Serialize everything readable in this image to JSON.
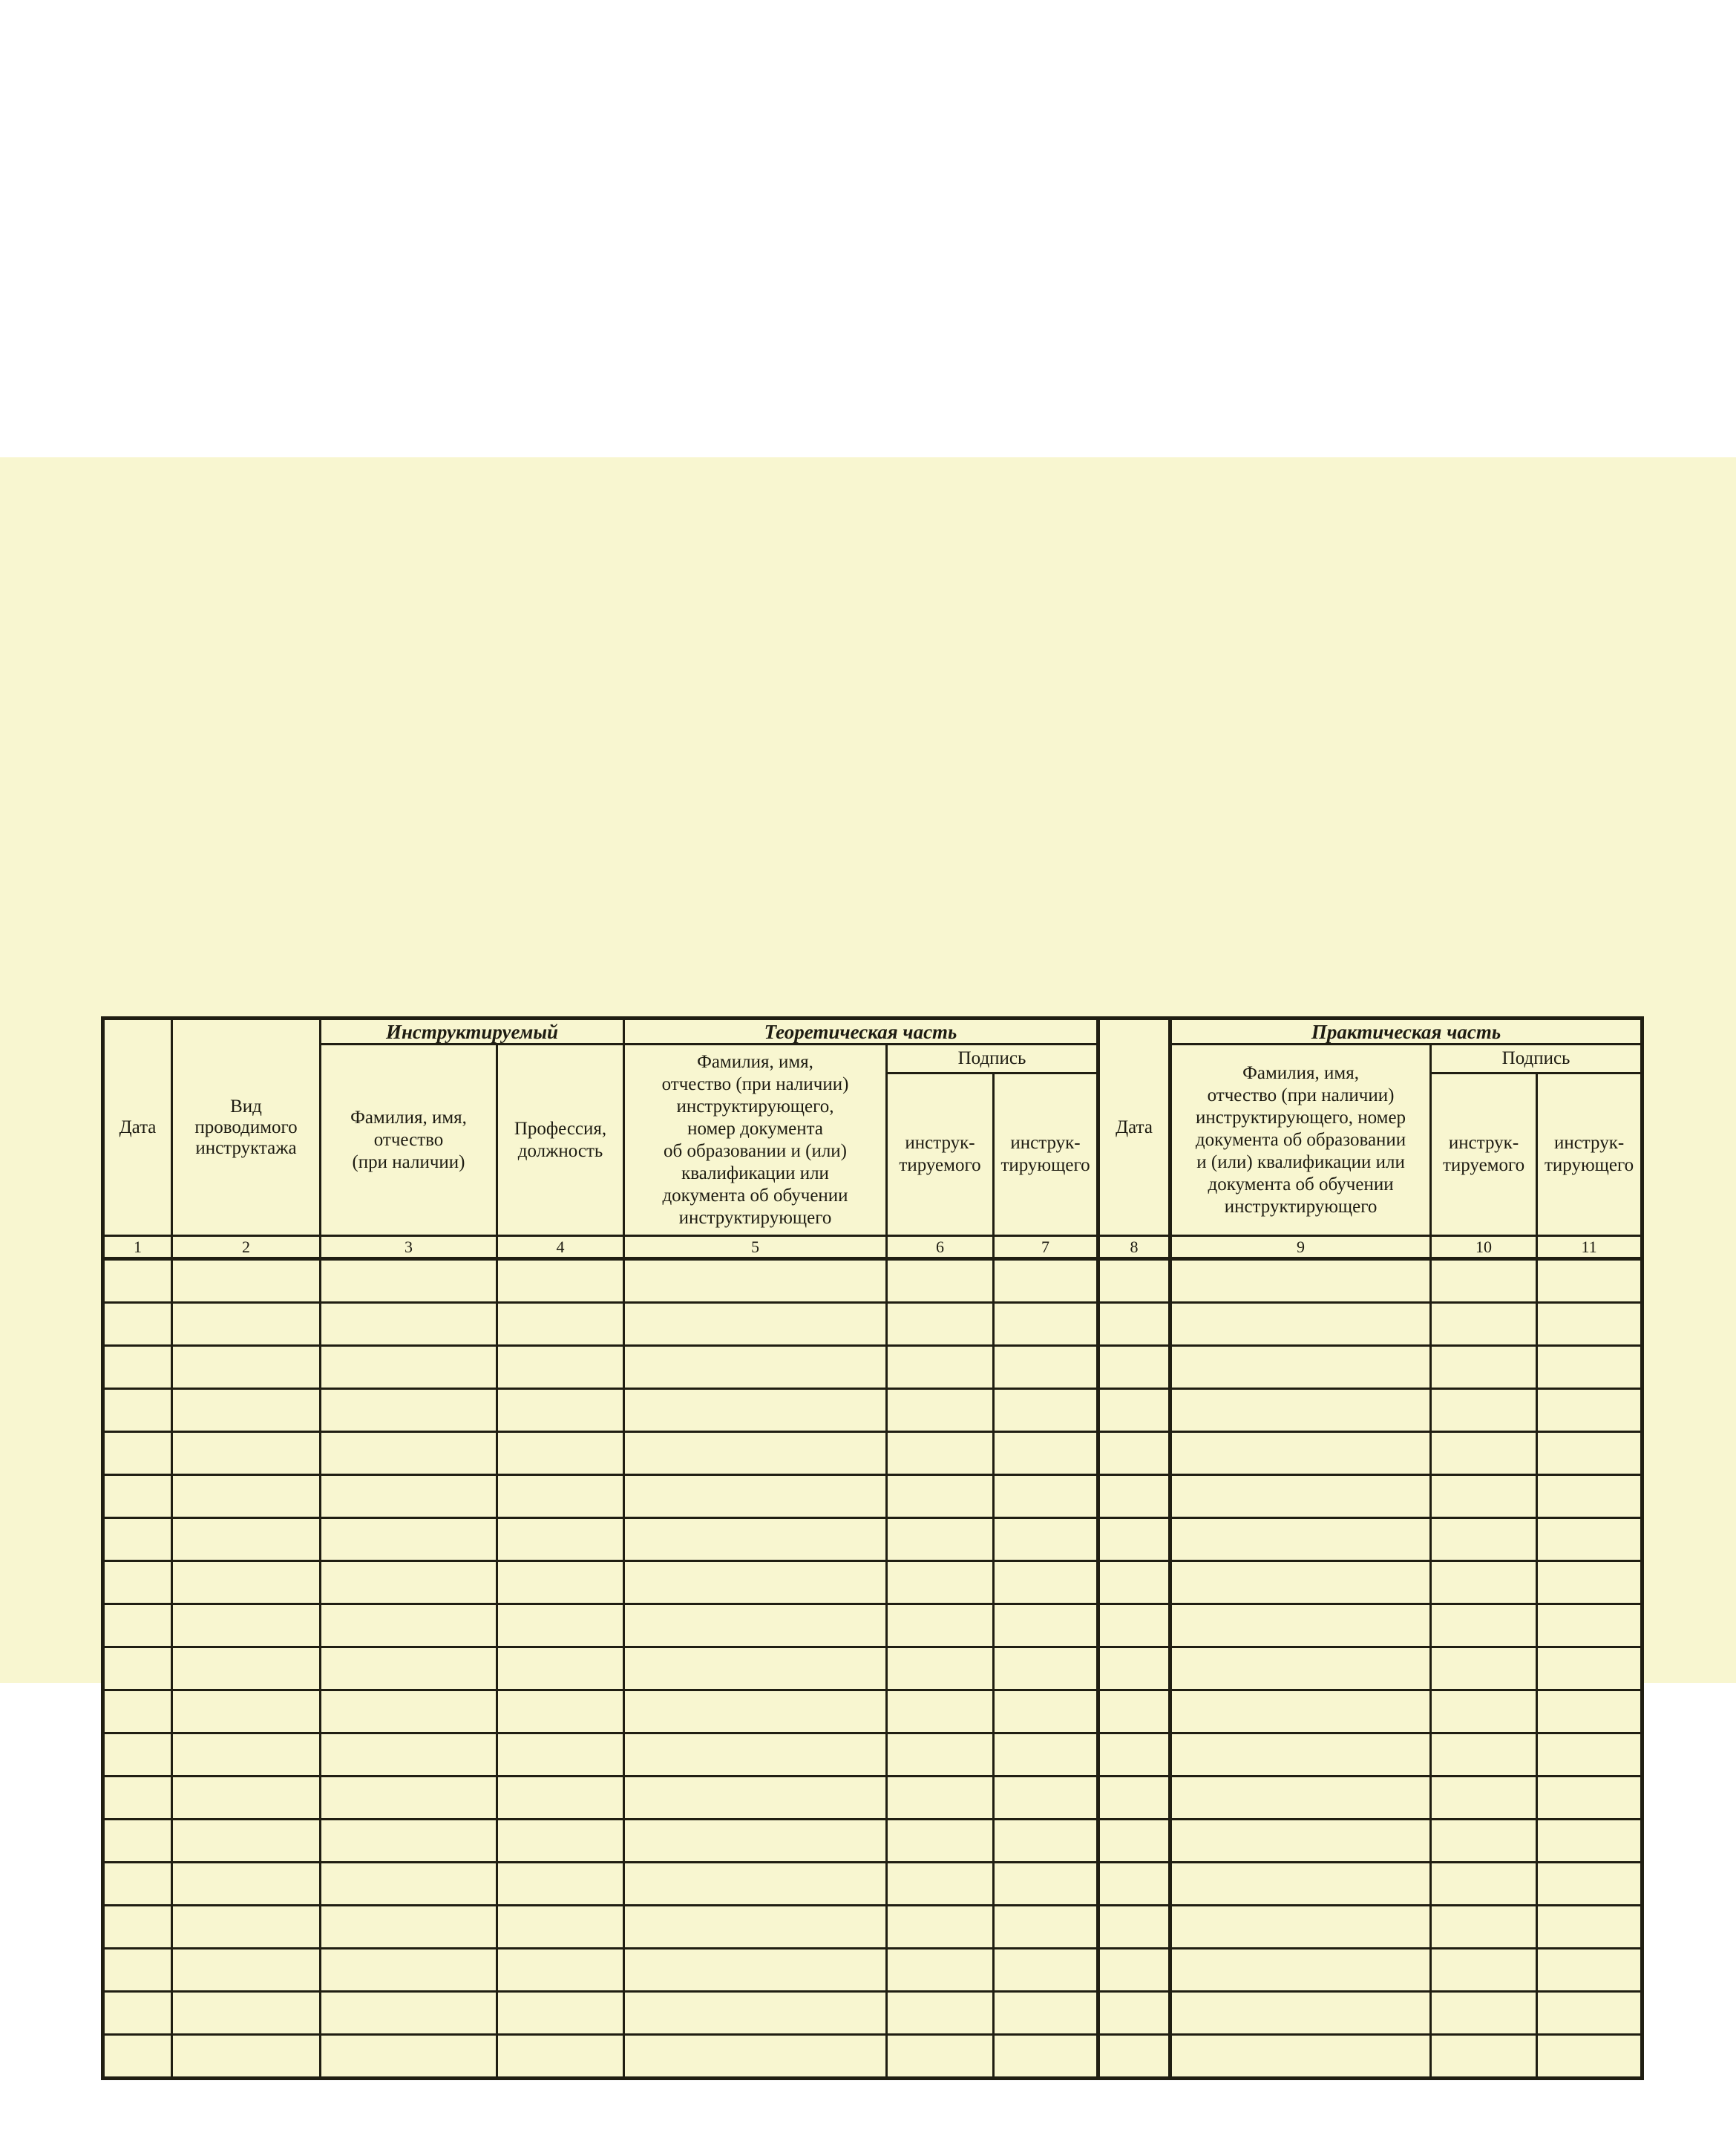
{
  "page": {
    "sheet_color": "#f8f6d0",
    "border_color": "#201e12",
    "text_color": "#1e1c12"
  },
  "table": {
    "group_headers": {
      "instructed": "Инструктируемый",
      "theory": "Теоретическая часть",
      "practice": "Практическая часть"
    },
    "headers": {
      "date": "Дата",
      "instruction_type": "Вид\nпроводимого\nинструктажа",
      "person_name": "Фамилия, имя,\nотчество\n(при наличии)",
      "profession": "Профессия,\nдолжность",
      "instructor_theory": "Фамилия, имя,\nотчество (при наличии)\nинструктирующего,\nномер документа\nоб образовании и (или)\nквалификации или\nдокумента об обучении\nинструктирующего",
      "signature": "Подпись",
      "signature2": "Подпись",
      "sig_of_instructed": "инструк-\nтируемого",
      "sig_of_instructor": "инструк-\nтирующего",
      "date_practice": "Дата",
      "instructor_practice": "Фамилия, имя,\nотчество (при наличии)\nинструктирующего, номер\nдокумента об образовании\nи (или) квалификации или\nдокумента об обучении\nинструктирующего"
    },
    "column_numbers": [
      "1",
      "2",
      "3",
      "4",
      "5",
      "6",
      "7",
      "8",
      "9",
      "10",
      "11"
    ],
    "empty_row_count": 19,
    "column_count": 11
  }
}
